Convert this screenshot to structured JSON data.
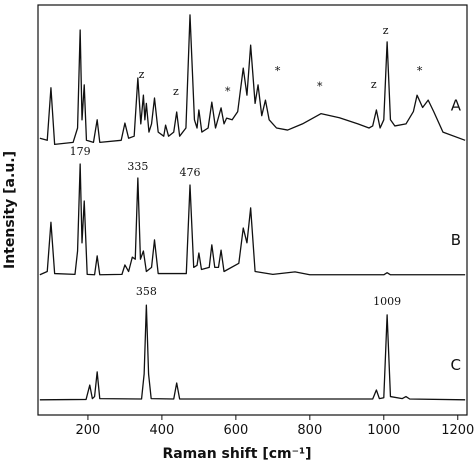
{
  "chart_data": {
    "type": "line",
    "xlabel": "Raman shift [cm⁻¹]",
    "ylabel": "Intensity [a.u.]",
    "xlim": [
      65,
      1225
    ],
    "ylim": [
      0,
      100
    ],
    "xticks": [
      200,
      400,
      600,
      800,
      1000,
      1200
    ],
    "series": [
      {
        "name": "A",
        "color": "#111111",
        "x": [
          70,
          90,
          100,
          110,
          160,
          172,
          179,
          184,
          190,
          196,
          215,
          225,
          232,
          290,
          300,
          310,
          325,
          335,
          343,
          350,
          354,
          358,
          365,
          372,
          380,
          390,
          405,
          410,
          418,
          432,
          440,
          448,
          465,
          476,
          488,
          495,
          500,
          508,
          525,
          535,
          545,
          560,
          568,
          575,
          590,
          605,
          620,
          630,
          640,
          652,
          660,
          670,
          680,
          690,
          710,
          740,
          780,
          830,
          880,
          930,
          960,
          970,
          980,
          990,
          1000,
          1009,
          1018,
          1030,
          1060,
          1080,
          1090,
          1105,
          1120,
          1135,
          1160,
          1220
        ],
        "values": [
          67.5,
          67,
          79.8,
          66,
          66.5,
          70,
          93.9,
          72,
          80.5,
          67,
          66.5,
          72,
          66.5,
          67,
          71.2,
          67.5,
          68,
          82.2,
          71,
          78,
          72,
          76,
          69,
          71,
          77.3,
          69,
          68,
          70.7,
          68,
          69,
          73.9,
          68,
          70,
          97.6,
          72,
          70,
          74.4,
          69,
          70,
          76.3,
          70,
          74.9,
          71,
          72.4,
          72,
          74,
          84.6,
          78,
          90.2,
          76,
          80.5,
          73,
          76.8,
          72,
          70,
          69.5,
          71,
          73.5,
          72.5,
          71,
          70,
          70.5,
          74.4,
          70,
          72,
          91,
          72,
          70.5,
          71,
          74,
          78,
          75,
          76.8,
          74,
          69,
          67
        ]
      },
      {
        "name": "B",
        "color": "#111111",
        "x": [
          70,
          90,
          100,
          110,
          165,
          172,
          179,
          184,
          190,
          198,
          218,
          225,
          232,
          292,
          300,
          310,
          320,
          328,
          335,
          342,
          350,
          358,
          372,
          380,
          390,
          466,
          476,
          486,
          495,
          500,
          507,
          528,
          535,
          543,
          553,
          560,
          568,
          608,
          620,
          630,
          640,
          652,
          700,
          760,
          800,
          1000,
          1009,
          1018,
          1220
        ],
        "values": [
          34.2,
          35,
          47,
          34.5,
          34.3,
          40,
          61.2,
          42,
          52.2,
          34.3,
          34.2,
          38.8,
          34.2,
          34.3,
          36.6,
          35,
          38.5,
          38,
          57.8,
          38,
          40,
          35,
          36,
          42.7,
          34.5,
          34.5,
          56.1,
          36,
          36.5,
          39.5,
          35.5,
          36,
          41.5,
          36,
          36,
          40.2,
          35,
          37,
          45.6,
          42,
          50.5,
          35,
          34.3,
          34.9,
          34.2,
          34.2,
          34.7,
          34.2,
          34.2
        ]
      },
      {
        "name": "C",
        "color": "#111111",
        "x": [
          70,
          195,
          205,
          212,
          218,
          225,
          232,
          345,
          352,
          358,
          364,
          371,
          432,
          440,
          448,
          970,
          980,
          988,
          1000,
          1009,
          1018,
          1050,
          1060,
          1070,
          1220
        ],
        "values": [
          3.7,
          3.8,
          7.3,
          4,
          4.5,
          10.5,
          4,
          3.9,
          10,
          26.8,
          10,
          4,
          3.9,
          7.8,
          3.9,
          3.9,
          6.1,
          4,
          4.2,
          24.4,
          4.5,
          4,
          4.5,
          3.9,
          3.7
        ]
      }
    ],
    "annotations": [
      {
        "text": "179",
        "x": 179,
        "y": 63.4
      },
      {
        "text": "335",
        "x": 335,
        "y": 59.8
      },
      {
        "text": "476",
        "x": 476,
        "y": 58.3
      },
      {
        "text": "358",
        "x": 358,
        "y": 29.3
      },
      {
        "text": "1009",
        "x": 1009,
        "y": 26.8
      },
      {
        "text": "z",
        "x": 345,
        "y": 82.2
      },
      {
        "text": "z",
        "x": 438,
        "y": 78
      },
      {
        "text": "*",
        "x": 578,
        "y": 78
      },
      {
        "text": "*",
        "x": 713,
        "y": 83
      },
      {
        "text": "*",
        "x": 827,
        "y": 79.3
      },
      {
        "text": "z",
        "x": 973,
        "y": 79.8
      },
      {
        "text": "z",
        "x": 1005,
        "y": 92.9
      },
      {
        "text": "*",
        "x": 1097,
        "y": 83
      }
    ]
  }
}
